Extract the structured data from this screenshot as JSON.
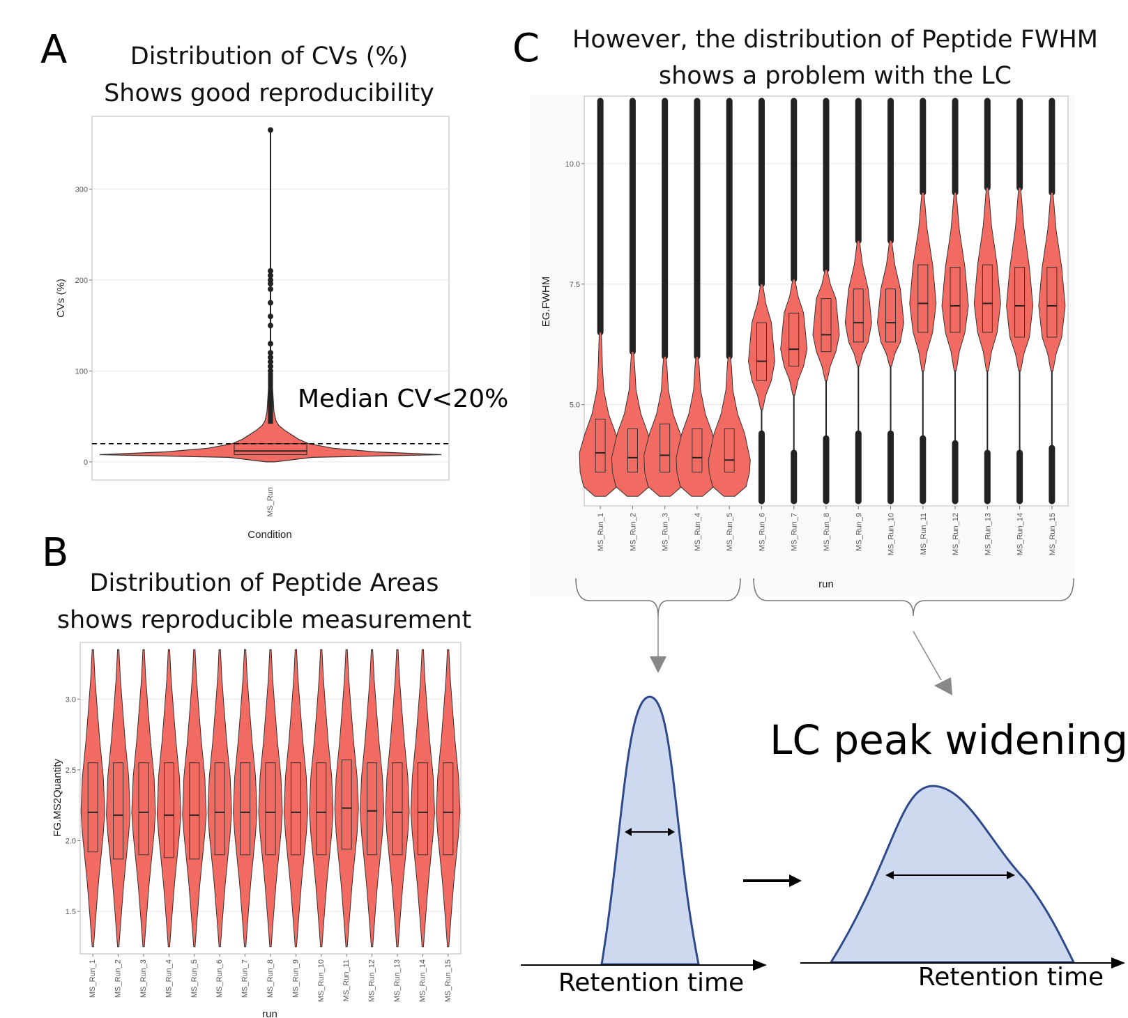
{
  "panels": {
    "A": {
      "letter": "A",
      "title1": "Distribution of CVs (%)",
      "title2": "Shows good reproducibility",
      "annotation": "Median CV<20%"
    },
    "B": {
      "letter": "B",
      "title1": "Distribution of Peptide Areas",
      "title2": "shows reproducible measurement"
    },
    "C": {
      "letter": "C",
      "title1": "However, the distribution of Peptide FWHM",
      "title2": "shows a problem with the LC"
    }
  },
  "diagram": {
    "widening_label": "LC peak widening",
    "left_xlabel": "Retention time",
    "right_xlabel": "Retention time"
  },
  "colors": {
    "violin_fill": "#f26b62",
    "peak_fill": "#cdd9ee",
    "peak_stroke": "#2f4a8a",
    "outlier": "#222222"
  },
  "chart_data": [
    {
      "type": "violin",
      "panel": "A",
      "xlabel": "Condition",
      "ylabel": "CVs (%)",
      "categories": [
        "MS_Run"
      ],
      "yticks": [
        0,
        100,
        200,
        300
      ],
      "ylim": [
        -20,
        380
      ],
      "median": 12,
      "q1": 8,
      "q3": 20,
      "whisker_low": 0,
      "max": 365,
      "reference_line": 20,
      "outliers": [
        100,
        105,
        110,
        115,
        120,
        130,
        150,
        160,
        175,
        190,
        196,
        200,
        205,
        210
      ],
      "grid": true
    },
    {
      "type": "violin",
      "panel": "B",
      "xlabel": "run",
      "ylabel": "FG.MS2Quantity",
      "yticks": [
        1.5,
        2.0,
        2.5,
        3.0
      ],
      "ylim": [
        1.2,
        3.4
      ],
      "categories": [
        "MS_Run_1",
        "MS_Run_2",
        "MS_Run_3",
        "MS_Run_4",
        "MS_Run_5",
        "MS_Run_6",
        "MS_Run_7",
        "MS_Run_8",
        "MS_Run_9",
        "MS_Run_10",
        "MS_Run_11",
        "MS_Run_12",
        "MS_Run_13",
        "MS_Run_14",
        "MS_Run_15"
      ],
      "median": [
        2.2,
        2.18,
        2.2,
        2.18,
        2.18,
        2.2,
        2.2,
        2.2,
        2.2,
        2.2,
        2.23,
        2.21,
        2.2,
        2.2,
        2.2
      ],
      "q1": [
        1.92,
        1.87,
        1.9,
        1.88,
        1.87,
        1.9,
        1.9,
        1.9,
        1.9,
        1.9,
        1.94,
        1.9,
        1.9,
        1.9,
        1.9
      ],
      "q3": [
        2.55,
        2.55,
        2.55,
        2.55,
        2.55,
        2.55,
        2.55,
        2.55,
        2.55,
        2.55,
        2.57,
        2.55,
        2.55,
        2.55,
        2.55
      ],
      "min": 1.25,
      "max": 3.35,
      "grid": true
    },
    {
      "type": "violin",
      "panel": "C",
      "xlabel": "run",
      "ylabel": "EG.FWHM",
      "yticks": [
        5.0,
        7.5,
        10.0
      ],
      "ylim": [
        2.9,
        11.4
      ],
      "categories": [
        "MS_Run_1",
        "MS_Run_2",
        "MS_Run_3",
        "MS_Run_4",
        "MS_Run_5",
        "MS_Run_6",
        "MS_Run_7",
        "MS_Run_8",
        "MS_Run_9",
        "MS_Run_10",
        "MS_Run_11",
        "MS_Run_12",
        "MS_Run_13",
        "MS_Run_14",
        "MS_Run_15"
      ],
      "median": [
        4.0,
        3.9,
        3.95,
        3.9,
        3.85,
        5.9,
        6.15,
        6.45,
        6.7,
        6.7,
        7.1,
        7.05,
        7.1,
        7.05,
        7.05
      ],
      "q1": [
        3.6,
        3.6,
        3.6,
        3.6,
        3.6,
        5.5,
        5.8,
        6.1,
        6.3,
        6.3,
        6.5,
        6.5,
        6.5,
        6.4,
        6.4
      ],
      "q3": [
        4.7,
        4.5,
        4.6,
        4.5,
        4.5,
        6.7,
        6.9,
        7.2,
        7.4,
        7.4,
        7.9,
        7.85,
        7.9,
        7.85,
        7.85
      ],
      "violin_min": [
        3.1,
        3.1,
        3.1,
        3.1,
        3.1,
        4.9,
        5.2,
        5.5,
        5.8,
        5.8,
        5.7,
        5.7,
        5.7,
        5.7,
        5.7
      ],
      "violin_max": [
        6.5,
        6.1,
        6.0,
        6.0,
        6.0,
        7.5,
        7.6,
        7.8,
        8.4,
        8.4,
        9.4,
        9.4,
        9.5,
        9.5,
        9.4
      ],
      "outlier_low_top": [
        null,
        null,
        null,
        null,
        null,
        4.4,
        4.0,
        4.3,
        4.4,
        4.4,
        4.3,
        4.2,
        4.0,
        4.0,
        4.1
      ],
      "max": 11.3,
      "min": 3.0,
      "grid": true
    }
  ]
}
